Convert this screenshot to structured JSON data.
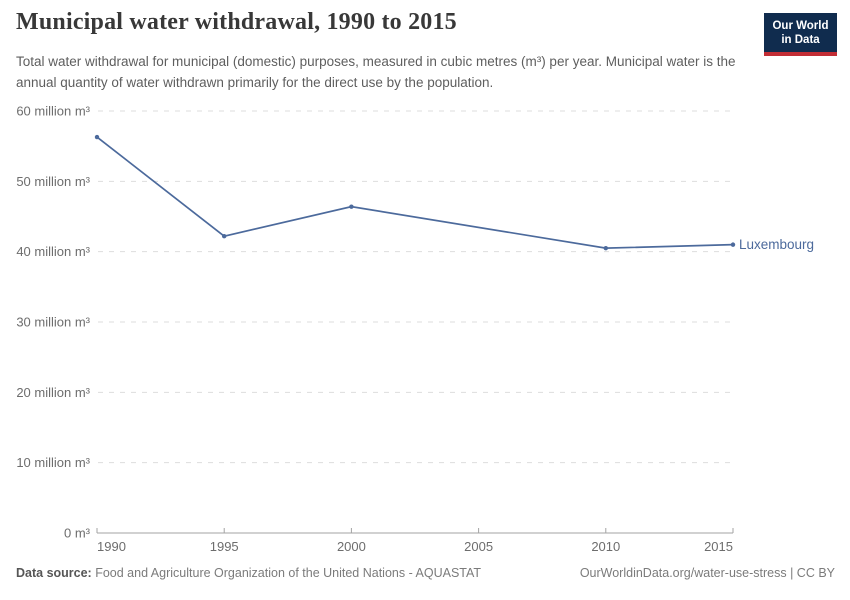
{
  "header": {
    "title": "Municipal water withdrawal, 1990 to 2015",
    "subtitle": "Total water withdrawal for municipal (domestic) purposes, measured in cubic metres (m³) per year. Municipal water is the annual quantity of water withdrawn primarily for the direct use by the population.",
    "logo_line1": "Our World",
    "logo_line2": "in Data",
    "logo_colors": {
      "background": "#102c4e",
      "underline": "#c22d35"
    }
  },
  "chart_data": {
    "type": "line",
    "title": "Municipal water withdrawal, 1990 to 2015",
    "unit": "million m³",
    "xlim": [
      1990,
      2015
    ],
    "ylim": [
      0,
      60
    ],
    "grid": "horizontal dashed",
    "legend_position": "end-of-line label",
    "x_ticks": [
      1990,
      1995,
      2000,
      2005,
      2010,
      2015
    ],
    "y_ticks": [
      {
        "value": 0,
        "label": "0 m³"
      },
      {
        "value": 10,
        "label": "10 million m³"
      },
      {
        "value": 20,
        "label": "20 million m³"
      },
      {
        "value": 30,
        "label": "30 million m³"
      },
      {
        "value": 40,
        "label": "40 million m³"
      },
      {
        "value": 50,
        "label": "50 million m³"
      },
      {
        "value": 60,
        "label": "60 million m³"
      }
    ],
    "series": [
      {
        "name": "Luxembourg",
        "color": "#4c6a9c",
        "x": [
          1990,
          1995,
          2000,
          2010,
          2015
        ],
        "values": [
          56.3,
          42.2,
          46.4,
          40.5,
          41.0
        ]
      }
    ],
    "colors": {
      "line": "#4c6a9c",
      "grid": "#dddddd",
      "axis": "#a3a3a3",
      "tick_label": "#6d6d6d"
    }
  },
  "footer": {
    "source_label": "Data source:",
    "source_text": " Food and Agriculture Organization of the United Nations - AQUASTAT",
    "link_text": "OurWorldinData.org/water-use-stress | CC BY"
  }
}
